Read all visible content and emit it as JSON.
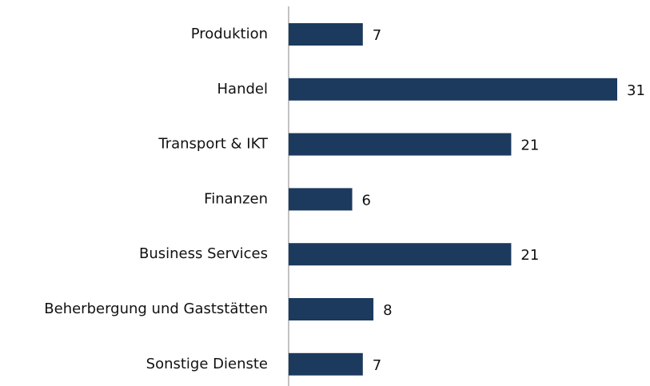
{
  "chart_data": {
    "type": "bar",
    "orientation": "horizontal",
    "categories": [
      "Produktion",
      "Handel",
      "Transport & IKT",
      "Finanzen",
      "Business Services",
      "Beherbergung und Gaststätten",
      "Sonstige Dienste"
    ],
    "values": [
      7,
      31,
      21,
      6,
      21,
      8,
      7
    ],
    "color": "#1c3a5e"
  }
}
